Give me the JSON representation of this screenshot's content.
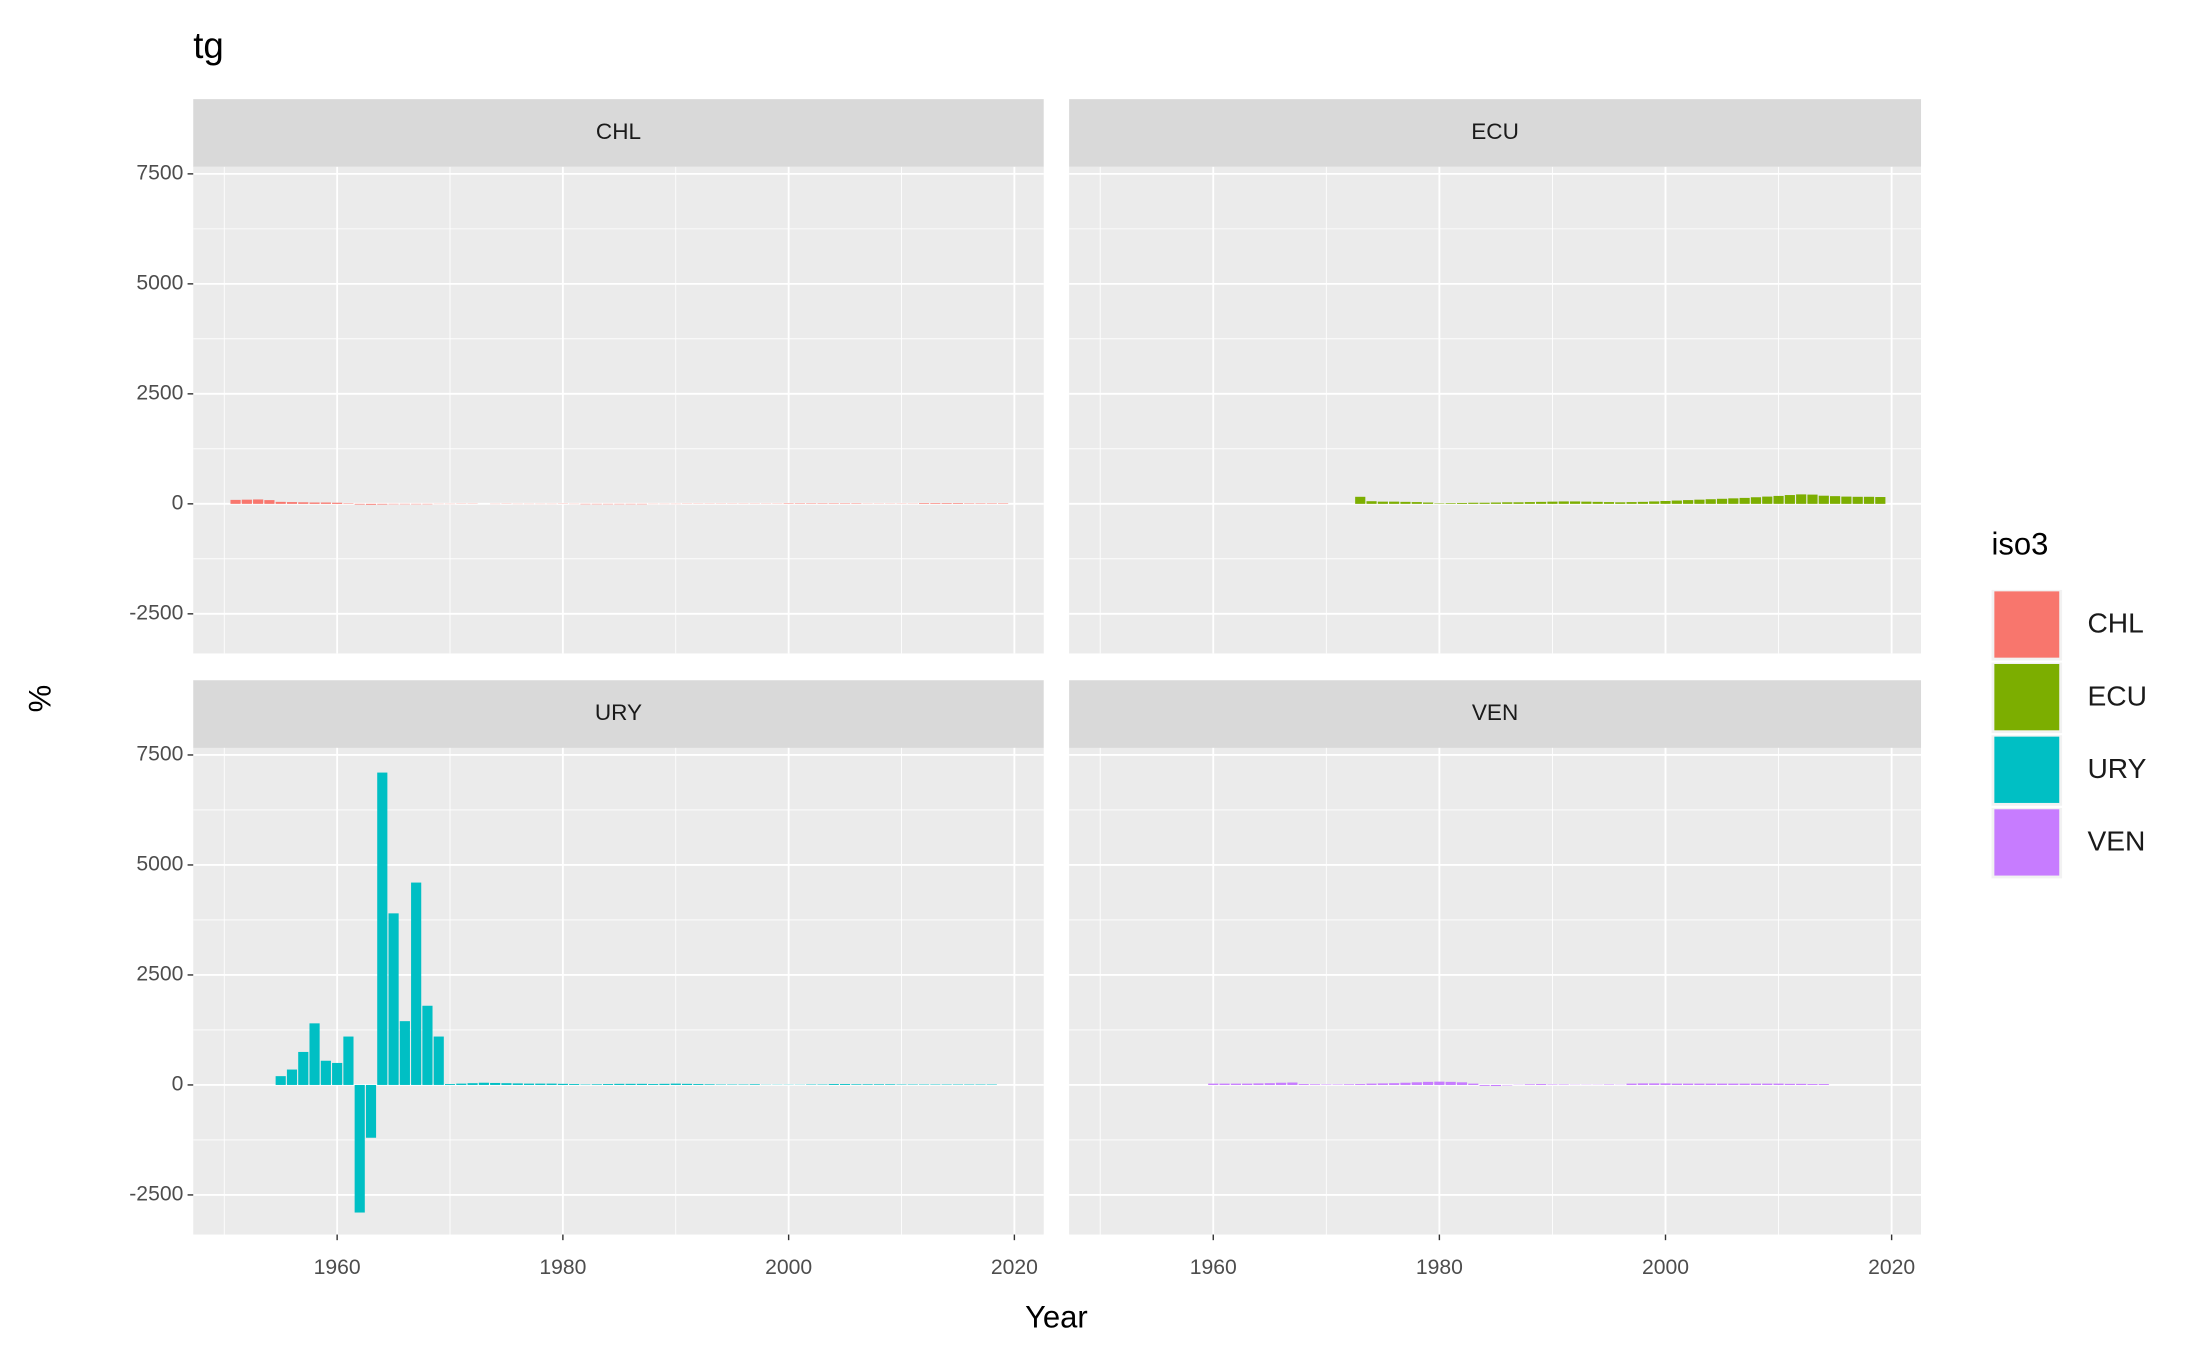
{
  "chart_data": {
    "type": "bar",
    "title": "tg",
    "xlabel": "Year",
    "ylabel": "%",
    "legend_title": "iso3",
    "xlim": [
      1947.25,
      2022.6
    ],
    "ylim": [
      -3400,
      7660
    ],
    "xticks": [
      1960,
      1980,
      2000,
      2020
    ],
    "yticks": [
      -2500,
      0,
      2500,
      5000,
      7500
    ],
    "grid": true,
    "series": [
      {
        "name": "CHL",
        "color": "#F8766D",
        "x": [
          1951,
          1952,
          1953,
          1954,
          1955,
          1956,
          1957,
          1958,
          1959,
          1960,
          1961,
          1962,
          1963,
          1964,
          1965,
          1966,
          1967,
          1968,
          1969,
          1970,
          1971,
          1972,
          1973,
          1974,
          1975,
          1976,
          1977,
          1978,
          1979,
          1980,
          1981,
          1982,
          1983,
          1984,
          1985,
          1986,
          1987,
          1988,
          1989,
          1990,
          1991,
          1992,
          1993,
          1994,
          1995,
          1996,
          1997,
          1998,
          1999,
          2000,
          2001,
          2002,
          2003,
          2004,
          2005,
          2006,
          2007,
          2008,
          2009,
          2010,
          2011,
          2012,
          2013,
          2014,
          2015,
          2016,
          2017,
          2018,
          2019
        ],
        "values": [
          90,
          95,
          100,
          85,
          45,
          40,
          35,
          30,
          30,
          25,
          10,
          -15,
          -20,
          -15,
          -10,
          -10,
          -10,
          -10,
          -5,
          -5,
          5,
          5,
          0,
          -5,
          5,
          -5,
          -5,
          -5,
          -5,
          5,
          -5,
          -10,
          -10,
          -10,
          -10,
          -10,
          -10,
          -5,
          -5,
          -5,
          5,
          5,
          5,
          5,
          5,
          5,
          5,
          5,
          5,
          10,
          10,
          10,
          10,
          10,
          10,
          10,
          5,
          5,
          5,
          5,
          5,
          15,
          15,
          15,
          15,
          10,
          10,
          10,
          10
        ]
      },
      {
        "name": "ECU",
        "color": "#7CAE00",
        "x": [
          1973,
          1974,
          1975,
          1976,
          1977,
          1978,
          1979,
          1980,
          1981,
          1982,
          1983,
          1984,
          1985,
          1986,
          1987,
          1988,
          1989,
          1990,
          1991,
          1992,
          1993,
          1994,
          1995,
          1996,
          1997,
          1998,
          1999,
          2000,
          2001,
          2002,
          2003,
          2004,
          2005,
          2006,
          2007,
          2008,
          2009,
          2010,
          2011,
          2012,
          2013,
          2014,
          2015,
          2016,
          2017,
          2018,
          2019
        ],
        "values": [
          160,
          60,
          50,
          50,
          45,
          40,
          30,
          10,
          15,
          20,
          25,
          25,
          30,
          35,
          35,
          40,
          45,
          50,
          55,
          55,
          50,
          45,
          40,
          35,
          40,
          45,
          55,
          65,
          75,
          85,
          95,
          105,
          115,
          125,
          135,
          150,
          165,
          180,
          200,
          215,
          210,
          185,
          175,
          165,
          160,
          160,
          155
        ]
      },
      {
        "name": "URY",
        "color": "#00BFC4",
        "x": [
          1955,
          1956,
          1957,
          1958,
          1959,
          1960,
          1961,
          1962,
          1963,
          1964,
          1965,
          1966,
          1967,
          1968,
          1969,
          1970,
          1971,
          1972,
          1973,
          1974,
          1975,
          1976,
          1977,
          1978,
          1979,
          1980,
          1981,
          1982,
          1983,
          1984,
          1985,
          1986,
          1987,
          1988,
          1989,
          1990,
          1991,
          1992,
          1993,
          1994,
          1995,
          1996,
          1997,
          1998,
          1999,
          2000,
          2001,
          2002,
          2003,
          2004,
          2005,
          2006,
          2007,
          2008,
          2009,
          2010,
          2011,
          2012,
          2013,
          2014,
          2015,
          2016,
          2017,
          2018
        ],
        "values": [
          200,
          350,
          750,
          1400,
          550,
          500,
          1100,
          -2900,
          -1200,
          7100,
          3900,
          1450,
          4600,
          1800,
          1100,
          20,
          30,
          40,
          50,
          45,
          40,
          35,
          30,
          30,
          30,
          25,
          20,
          10,
          15,
          20,
          25,
          25,
          25,
          20,
          25,
          30,
          25,
          20,
          15,
          10,
          10,
          10,
          15,
          5,
          5,
          5,
          5,
          10,
          10,
          20,
          20,
          15,
          15,
          15,
          15,
          10,
          10,
          10,
          10,
          10,
          10,
          10,
          10,
          10
        ]
      },
      {
        "name": "VEN",
        "color": "#C77CFF",
        "x": [
          1960,
          1961,
          1962,
          1963,
          1964,
          1965,
          1966,
          1967,
          1968,
          1969,
          1970,
          1971,
          1972,
          1973,
          1974,
          1975,
          1976,
          1977,
          1978,
          1979,
          1980,
          1981,
          1982,
          1983,
          1984,
          1985,
          1986,
          1987,
          1988,
          1989,
          1990,
          1991,
          1992,
          1993,
          1994,
          1995,
          1996,
          1997,
          1998,
          1999,
          2000,
          2001,
          2002,
          2003,
          2004,
          2005,
          2006,
          2007,
          2008,
          2009,
          2010,
          2011,
          2012,
          2013,
          2014
        ],
        "values": [
          30,
          30,
          30,
          30,
          35,
          40,
          50,
          55,
          20,
          15,
          10,
          10,
          15,
          20,
          30,
          35,
          40,
          50,
          60,
          70,
          75,
          70,
          60,
          30,
          -20,
          -25,
          -10,
          5,
          15,
          20,
          10,
          10,
          5,
          5,
          5,
          10,
          5,
          30,
          35,
          35,
          35,
          30,
          30,
          30,
          30,
          30,
          30,
          30,
          30,
          30,
          30,
          25,
          25,
          20,
          20
        ]
      }
    ]
  }
}
